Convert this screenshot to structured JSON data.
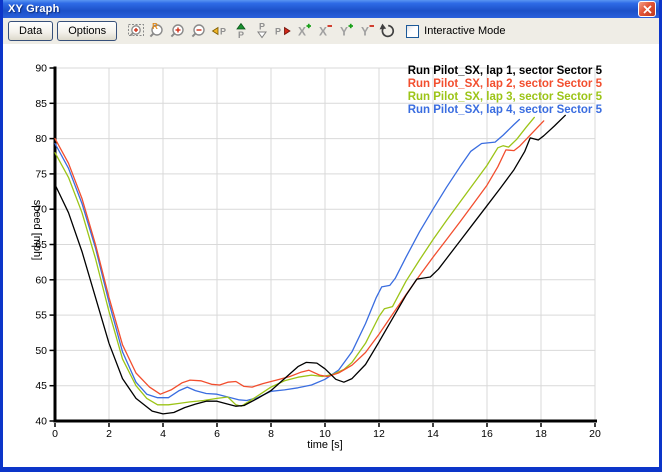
{
  "window": {
    "title": "XY Graph"
  },
  "toolbar": {
    "data_button": "Data",
    "options_button": "Options",
    "interactive_mode_label": "Interactive Mode",
    "interactive_mode_checked": false,
    "icons": [
      "zoom-to-rect",
      "zoom-reset",
      "zoom-in",
      "zoom-out",
      "pan-left",
      "pan-up",
      "pan-down",
      "pan-right",
      "x-axis-add",
      "x-axis-remove",
      "y-axis-add",
      "y-axis-remove",
      "refresh"
    ]
  },
  "chart_data": {
    "type": "line",
    "title": "",
    "xlabel": "time [s]",
    "ylabel": "speed [mph]",
    "xlim": [
      0,
      20
    ],
    "ylim": [
      40,
      90
    ],
    "xtick_step": 2,
    "ytick_step": 5,
    "grid": true,
    "grid_color": "#d9d9d9",
    "axis_color": "#000000",
    "legend_position": "top-right",
    "series": [
      {
        "name": "Run Pilot_SX, lap 1, sector Sector 5",
        "color": "#000000",
        "points": [
          [
            0,
            73.5
          ],
          [
            0.5,
            69.5
          ],
          [
            1,
            64
          ],
          [
            1.5,
            57.5
          ],
          [
            2,
            51
          ],
          [
            2.5,
            46
          ],
          [
            3,
            43.2
          ],
          [
            3.3,
            42.3
          ],
          [
            3.6,
            41.4
          ],
          [
            4,
            41
          ],
          [
            4.4,
            41.2
          ],
          [
            4.8,
            41.9
          ],
          [
            5.2,
            42.4
          ],
          [
            5.6,
            42.8
          ],
          [
            6,
            42.8
          ],
          [
            6.4,
            42.4
          ],
          [
            6.7,
            42.1
          ],
          [
            7,
            42.2
          ],
          [
            7.5,
            43.2
          ],
          [
            8,
            44.3
          ],
          [
            8.5,
            46
          ],
          [
            9,
            47.7
          ],
          [
            9.3,
            48.3
          ],
          [
            9.7,
            48.2
          ],
          [
            10,
            47.4
          ],
          [
            10.4,
            45.9
          ],
          [
            10.7,
            45.5
          ],
          [
            11,
            46
          ],
          [
            11.5,
            48
          ],
          [
            12,
            51.2
          ],
          [
            12.5,
            54.5
          ],
          [
            13,
            57.8
          ],
          [
            13.4,
            60.1
          ],
          [
            13.9,
            60.4
          ],
          [
            14.2,
            61.5
          ],
          [
            14.5,
            63
          ],
          [
            15,
            65.5
          ],
          [
            15.5,
            68
          ],
          [
            16,
            70.5
          ],
          [
            16.5,
            73
          ],
          [
            17,
            75.6
          ],
          [
            17.4,
            78.2
          ],
          [
            17.6,
            80.1
          ],
          [
            17.9,
            79.8
          ],
          [
            18.1,
            80.4
          ],
          [
            18.5,
            81.8
          ],
          [
            18.9,
            83.3
          ]
        ]
      },
      {
        "name": "Run Pilot_SX, lap 2, sector Sector 5",
        "color": "#f24e2e",
        "points": [
          [
            0,
            80
          ],
          [
            0.5,
            76.5
          ],
          [
            1,
            71.5
          ],
          [
            1.5,
            65
          ],
          [
            2,
            57.5
          ],
          [
            2.5,
            50.8
          ],
          [
            3,
            46.8
          ],
          [
            3.5,
            44.8
          ],
          [
            3.9,
            43.8
          ],
          [
            4.3,
            44.4
          ],
          [
            4.7,
            45.4
          ],
          [
            5,
            45.8
          ],
          [
            5.4,
            45.7
          ],
          [
            5.8,
            45.2
          ],
          [
            6.1,
            45.1
          ],
          [
            6.4,
            45.5
          ],
          [
            6.7,
            45.6
          ],
          [
            7,
            44.9
          ],
          [
            7.3,
            44.8
          ],
          [
            7.7,
            45.3
          ],
          [
            8.2,
            45.8
          ],
          [
            8.7,
            46.3
          ],
          [
            9.1,
            46.9
          ],
          [
            9.4,
            47.2
          ],
          [
            9.8,
            46.5
          ],
          [
            10.1,
            46.3
          ],
          [
            10.5,
            46.8
          ],
          [
            11,
            47.9
          ],
          [
            11.5,
            49.7
          ],
          [
            12,
            52.3
          ],
          [
            12.5,
            55.1
          ],
          [
            13,
            57.9
          ],
          [
            13.5,
            60.6
          ],
          [
            14,
            63.2
          ],
          [
            14.5,
            65.7
          ],
          [
            15,
            68.2
          ],
          [
            15.5,
            70.8
          ],
          [
            16,
            73.4
          ],
          [
            16.4,
            76
          ],
          [
            16.7,
            78.4
          ],
          [
            17,
            78.3
          ],
          [
            17.2,
            78.9
          ],
          [
            17.5,
            80.1
          ],
          [
            17.8,
            81.3
          ],
          [
            18.1,
            82.5
          ]
        ]
      },
      {
        "name": "Run Pilot_SX, lap 3, sector Sector 5",
        "color": "#9cc417",
        "points": [
          [
            0,
            78
          ],
          [
            0.5,
            74.5
          ],
          [
            1,
            69.5
          ],
          [
            1.5,
            63
          ],
          [
            2,
            55.5
          ],
          [
            2.5,
            48.8
          ],
          [
            3,
            45
          ],
          [
            3.4,
            43.2
          ],
          [
            3.8,
            42.3
          ],
          [
            4.2,
            42.3
          ],
          [
            4.6,
            42.5
          ],
          [
            5,
            42.7
          ],
          [
            5.5,
            42.9
          ],
          [
            6,
            43.2
          ],
          [
            6.4,
            43.4
          ],
          [
            6.7,
            42.3
          ],
          [
            6.9,
            42.1
          ],
          [
            7.2,
            42.8
          ],
          [
            7.6,
            43.8
          ],
          [
            8,
            44.8
          ],
          [
            8.5,
            45.7
          ],
          [
            9,
            46.2
          ],
          [
            9.5,
            46.5
          ],
          [
            9.9,
            46.3
          ],
          [
            10.3,
            46.6
          ],
          [
            10.7,
            47.3
          ],
          [
            11,
            48.3
          ],
          [
            11.5,
            51
          ],
          [
            12,
            54.8
          ],
          [
            12.2,
            55.9
          ],
          [
            12.5,
            56.2
          ],
          [
            13,
            59.8
          ],
          [
            13.5,
            62.8
          ],
          [
            14,
            65.7
          ],
          [
            14.5,
            68.4
          ],
          [
            15,
            71
          ],
          [
            15.5,
            73.6
          ],
          [
            16,
            76.2
          ],
          [
            16.4,
            78.7
          ],
          [
            16.6,
            79
          ],
          [
            16.8,
            78.8
          ],
          [
            17.1,
            79.9
          ],
          [
            17.45,
            81.6
          ],
          [
            17.75,
            83
          ]
        ]
      },
      {
        "name": "Run Pilot_SX, lap 4, sector Sector 5",
        "color": "#3a6de0",
        "points": [
          [
            0,
            79.3
          ],
          [
            0.5,
            75.8
          ],
          [
            1,
            70.8
          ],
          [
            1.5,
            64.5
          ],
          [
            2,
            56.8
          ],
          [
            2.5,
            49.8
          ],
          [
            3,
            45.5
          ],
          [
            3.4,
            43.8
          ],
          [
            3.8,
            43.3
          ],
          [
            4.2,
            43.3
          ],
          [
            4.6,
            44.3
          ],
          [
            4.9,
            44.8
          ],
          [
            5.2,
            44.3
          ],
          [
            5.6,
            43.9
          ],
          [
            6,
            43.8
          ],
          [
            6.4,
            43.4
          ],
          [
            6.8,
            43
          ],
          [
            7.1,
            42.9
          ],
          [
            7.5,
            43.3
          ],
          [
            8,
            44.2
          ],
          [
            8.5,
            44.4
          ],
          [
            9,
            44.7
          ],
          [
            9.5,
            45.1
          ],
          [
            10,
            45.9
          ],
          [
            10.5,
            47.2
          ],
          [
            11,
            49.8
          ],
          [
            11.5,
            53.8
          ],
          [
            11.9,
            57.5
          ],
          [
            12.1,
            59
          ],
          [
            12.4,
            59.2
          ],
          [
            12.6,
            60.2
          ],
          [
            13,
            63.2
          ],
          [
            13.5,
            66.8
          ],
          [
            14,
            70
          ],
          [
            14.5,
            73.1
          ],
          [
            15,
            76
          ],
          [
            15.4,
            78.2
          ],
          [
            15.8,
            79.3
          ],
          [
            16.3,
            79.5
          ],
          [
            16.6,
            80.5
          ],
          [
            17,
            82
          ],
          [
            17.2,
            82.7
          ]
        ]
      }
    ]
  }
}
